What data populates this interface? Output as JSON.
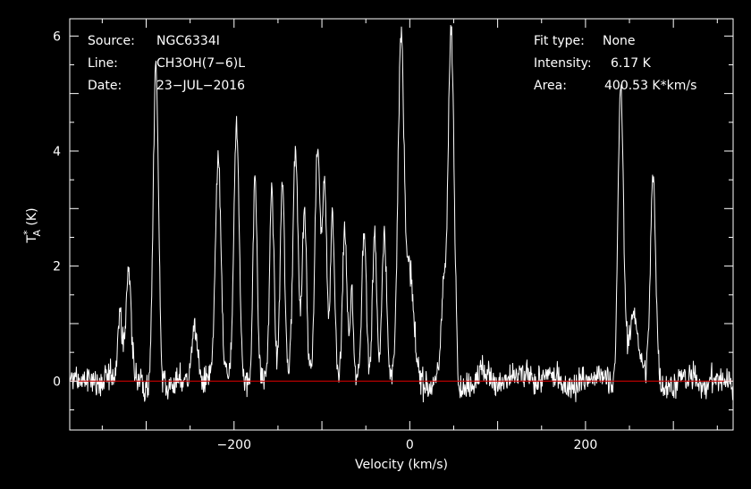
{
  "chart_data": {
    "type": "line",
    "title": "",
    "xlabel": "Velocity (km/s)",
    "ylabel": "T*A (K)",
    "ylabel_main": "T",
    "ylabel_sup": "*",
    "ylabel_sub": "A",
    "ylabel_unit": " (K)",
    "xlim": [
      -387,
      368
    ],
    "ylim": [
      -0.85,
      6.3
    ],
    "xticks": [
      -200,
      0,
      200
    ],
    "xtick_labels": [
      "−200",
      "0",
      "200"
    ],
    "yticks": [
      0,
      2,
      4,
      6
    ],
    "ytick_labels": [
      "0",
      "2",
      "4",
      "6"
    ],
    "grid": false,
    "baseline": 0,
    "line_color": "#ffffff",
    "baseline_color": "#cc0000",
    "noise_rms": 0.12,
    "peaks": [
      {
        "x": -330,
        "y": 1.3,
        "w": 2.5
      },
      {
        "x": -320,
        "y": 1.95,
        "w": 3
      },
      {
        "x": -289,
        "y": 5.55,
        "w": 3
      },
      {
        "x": -245,
        "y": 1.0,
        "w": 3
      },
      {
        "x": -218,
        "y": 3.8,
        "w": 3
      },
      {
        "x": -197,
        "y": 4.35,
        "w": 3
      },
      {
        "x": -176,
        "y": 3.5,
        "w": 2.5
      },
      {
        "x": -157,
        "y": 3.3,
        "w": 2.5
      },
      {
        "x": -145,
        "y": 3.4,
        "w": 2.5
      },
      {
        "x": -130,
        "y": 4.15,
        "w": 3
      },
      {
        "x": -120,
        "y": 3.0,
        "w": 2.5
      },
      {
        "x": -105,
        "y": 4.05,
        "w": 3
      },
      {
        "x": -97,
        "y": 3.6,
        "w": 2.5
      },
      {
        "x": -88,
        "y": 3.0,
        "w": 2.5
      },
      {
        "x": -74,
        "y": 2.7,
        "w": 2.5
      },
      {
        "x": -66,
        "y": 1.5,
        "w": 2
      },
      {
        "x": -52,
        "y": 2.7,
        "w": 2.5
      },
      {
        "x": -40,
        "y": 2.6,
        "w": 2.5
      },
      {
        "x": -29,
        "y": 2.6,
        "w": 2.5
      },
      {
        "x": -10,
        "y": 6.1,
        "w": 3.5
      },
      {
        "x": 0,
        "y": 1.8,
        "w": 4
      },
      {
        "x": 38,
        "y": 1.6,
        "w": 2.5
      },
      {
        "x": 47,
        "y": 6.05,
        "w": 3.5
      },
      {
        "x": 80,
        "y": 0.3,
        "w": 5
      },
      {
        "x": 240,
        "y": 5.1,
        "w": 3
      },
      {
        "x": 255,
        "y": 1.1,
        "w": 6
      },
      {
        "x": 277,
        "y": 3.55,
        "w": 3
      }
    ],
    "info_left": [
      {
        "key": "Source:",
        "value": "NGC6334I"
      },
      {
        "key": "Line:",
        "value": "CH3OH(7−6)L"
      },
      {
        "key": "Date:",
        "value": "23−JUL−2016"
      }
    ],
    "info_right": [
      {
        "key": "Fit type:",
        "value": "None"
      },
      {
        "key": "Intensity:",
        "value": "6.17 K"
      },
      {
        "key": "Area:",
        "value": "400.53 K*km/s"
      }
    ]
  }
}
